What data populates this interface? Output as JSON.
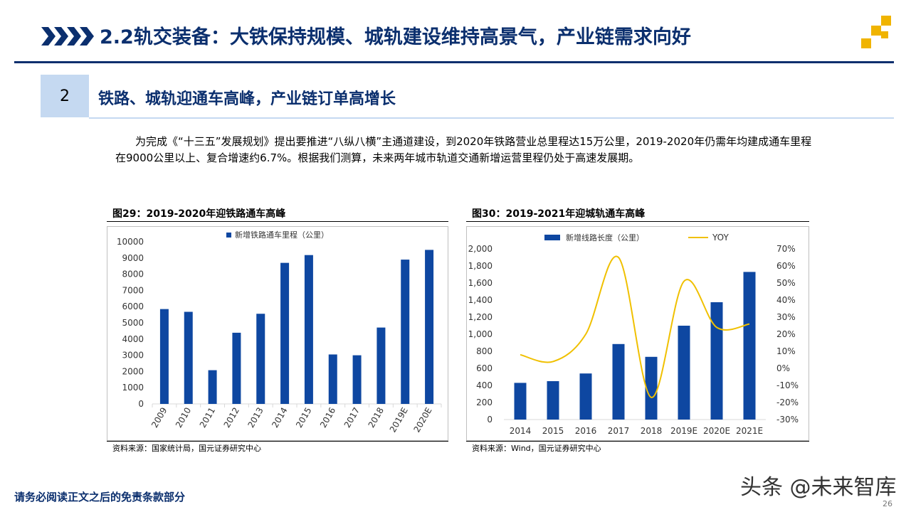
{
  "header": {
    "title": "2.2轨交装备：大铁保持规模、城轨建设维持高景气，产业链需求向好",
    "accent_color": "#0b2f6e",
    "logo_color": "#f0b400"
  },
  "section": {
    "number": "2",
    "title": "铁路、城轨迎通车高峰，产业链订单高增长"
  },
  "intro_text": "为完成《“十三五”发展规划》提出要推进“八纵八横”主通道建设，到2020年铁路营业总里程达15万公里，2019-2020年仍需年均建成通车里程在9000公里以上、复合增速约6.7%。根据我们测算，未来两年城市轨道交通新增运营里程仍处于高速发展期。",
  "chart_data": [
    {
      "title": "图29：2019-2020年迎铁路通车高峰",
      "type": "bar",
      "categories": [
        "2009",
        "2010",
        "2011",
        "2012",
        "2013",
        "2014",
        "2015",
        "2016",
        "2017",
        "2018",
        "2019E",
        "2020E"
      ],
      "series": [
        {
          "name": "新增铁路通车里程（公里）",
          "values": [
            5850,
            5680,
            2080,
            4390,
            5560,
            8700,
            9180,
            3050,
            3000,
            4710,
            8900,
            9500
          ],
          "color": "#0e47a1"
        }
      ],
      "ylim": [
        0,
        10000
      ],
      "yticks": [
        "0",
        "1000",
        "2000",
        "3000",
        "4000",
        "5000",
        "6000",
        "7000",
        "8000",
        "9000",
        "10000"
      ],
      "legend": "top",
      "grid": false,
      "source": "资料来源：国家统计局，国元证券研究中心"
    },
    {
      "title": "图30：2019-2021年迎城轨通车高峰",
      "type": "bar",
      "categories": [
        "2014",
        "2015",
        "2016",
        "2017",
        "2018",
        "2019E",
        "2020E",
        "2021E"
      ],
      "series": [
        {
          "name": "新增线路长度（公里）",
          "type": "bar",
          "axis": "left",
          "values": [
            430,
            450,
            540,
            885,
            735,
            1100,
            1375,
            1730
          ],
          "color": "#0e47a1"
        },
        {
          "name": "YOY",
          "type": "line",
          "axis": "right",
          "values": [
            8,
            4,
            20,
            65,
            -17,
            51,
            24,
            26
          ],
          "color": "#f0c000"
        }
      ],
      "ylim": [
        0,
        2000
      ],
      "yticks": [
        "0",
        "200",
        "400",
        "600",
        "800",
        "1,000",
        "1,200",
        "1,400",
        "1,600",
        "1,800",
        "2,000"
      ],
      "y2lim": [
        -30,
        70
      ],
      "y2ticks": [
        "-30%",
        "-20%",
        "-10%",
        "0%",
        "10%",
        "20%",
        "30%",
        "40%",
        "50%",
        "60%",
        "70%"
      ],
      "legend": "top",
      "grid": false,
      "source": "资料来源：Wind，国元证券研究中心"
    }
  ],
  "footer": {
    "disclaimer": "请务必阅读正文之后的免责条款部分",
    "watermark": "头条 @未来智库",
    "page_number": "26"
  }
}
